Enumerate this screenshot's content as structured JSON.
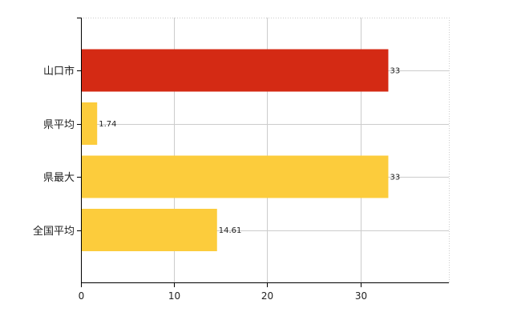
{
  "chart_data": {
    "type": "bar",
    "orientation": "horizontal",
    "categories": [
      "山口市",
      "県平均",
      "県最大",
      "全国平均"
    ],
    "values": [
      33,
      1.74,
      33,
      14.61
    ],
    "value_labels": [
      "33",
      "1.74",
      "33",
      "14.61"
    ],
    "bar_colors": [
      "#d42a14",
      "#fccc3c",
      "#fccc3c",
      "#fccc3c"
    ],
    "xlim": [
      0,
      39.5
    ],
    "xticks": [
      0,
      10,
      20,
      30
    ],
    "xtick_labels": [
      "0",
      "10",
      "20",
      "30"
    ],
    "grid": true,
    "title": "",
    "xlabel": "",
    "ylabel": ""
  }
}
